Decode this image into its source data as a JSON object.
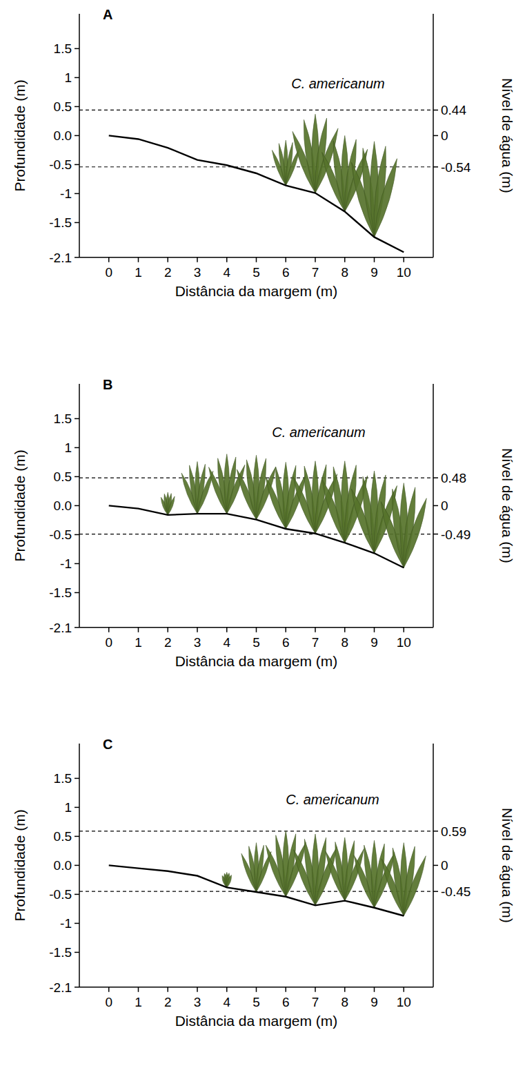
{
  "chart_data": [
    {
      "type": "line",
      "title": "A",
      "annotation": "C. americanum",
      "x_label": "Distância da margem (m)",
      "y_label": "Profundidade (m)",
      "y2_label": "Nível de água (m)",
      "x": [
        0,
        1,
        2,
        3,
        4,
        5,
        6,
        7,
        8,
        9,
        10
      ],
      "values": [
        0,
        -0.06,
        -0.21,
        -0.42,
        -0.51,
        -0.65,
        -0.86,
        -0.99,
        -1.31,
        -1.75,
        -2.01
      ],
      "color": "#000000",
      "xlim": [
        -1,
        11
      ],
      "xticks": [
        0,
        1,
        2,
        3,
        4,
        5,
        6,
        7,
        8,
        9,
        10
      ],
      "ylim": [
        -2.1,
        2.1
      ],
      "yticks": [
        1.5,
        1,
        0.5,
        {
          "value": 0,
          "label": "0.0"
        },
        -0.5,
        -1,
        -1.5,
        -2.1
      ],
      "y2lim": [
        -2.1,
        2.1
      ],
      "y2ticks": [
        0.44,
        0,
        -0.54
      ],
      "water_levels": [
        0.44,
        -0.54
      ],
      "plants": {
        "x": [
          6,
          7,
          8,
          9
        ],
        "top": [
          -0.08,
          0.37,
          0.0,
          -0.1
        ],
        "color": "#56732c"
      }
    },
    {
      "type": "line",
      "title": "B",
      "annotation": "C. americanum",
      "x_label": "Distância da margem (m)",
      "y_label": "Profundidade (m)",
      "y2_label": "Nível de água (m)",
      "x": [
        0,
        1,
        2,
        3,
        4,
        5,
        6,
        7,
        8,
        9,
        10
      ],
      "values": [
        0,
        -0.05,
        -0.16,
        -0.14,
        -0.14,
        -0.24,
        -0.4,
        -0.48,
        -0.64,
        -0.82,
        -1.07
      ],
      "color": "#000000",
      "xlim": [
        -1,
        11
      ],
      "xticks": [
        0,
        1,
        2,
        3,
        4,
        5,
        6,
        7,
        8,
        9,
        10
      ],
      "ylim": [
        -2.1,
        2.1
      ],
      "yticks": [
        1.5,
        1,
        0.5,
        {
          "value": 0,
          "label": "0.0"
        },
        -0.5,
        -1,
        -1.5,
        -2.1
      ],
      "y2lim": [
        -2.1,
        2.1
      ],
      "y2ticks": [
        0.48,
        0,
        -0.49
      ],
      "water_levels": [
        0.48,
        -0.49
      ],
      "plants": {
        "x": [
          2,
          3,
          4,
          5,
          6,
          7,
          8,
          9,
          10
        ],
        "top": [
          0.23,
          0.76,
          0.89,
          0.87,
          0.75,
          0.77,
          0.77,
          0.6,
          0.39
        ],
        "color": "#56732c"
      }
    },
    {
      "type": "line",
      "title": "C",
      "annotation": "C. americanum",
      "x_label": "Distância da margem (m)",
      "y_label": "Profundidade (m)",
      "y2_label": "Nível de água (m)",
      "x": [
        0,
        1,
        2,
        3,
        4,
        5,
        6,
        7,
        8,
        9,
        10
      ],
      "values": [
        0,
        -0.05,
        -0.1,
        -0.18,
        -0.38,
        -0.46,
        -0.54,
        -0.69,
        -0.61,
        -0.73,
        -0.87
      ],
      "color": "#000000",
      "xlim": [
        -1,
        11
      ],
      "xticks": [
        0,
        1,
        2,
        3,
        4,
        5,
        6,
        7,
        8,
        9,
        10
      ],
      "ylim": [
        -2.1,
        2.1
      ],
      "yticks": [
        1.5,
        1,
        0.5,
        {
          "value": 0,
          "label": "0.0"
        },
        -0.5,
        -1,
        -1.5,
        -2.1
      ],
      "y2lim": [
        -2.1,
        2.1
      ],
      "y2ticks": [
        0.59,
        0,
        -0.45
      ],
      "water_levels": [
        0.59,
        -0.45
      ],
      "plants": {
        "x": [
          4,
          5,
          6,
          7,
          8,
          9,
          10
        ],
        "top": [
          -0.12,
          0.39,
          0.6,
          0.54,
          0.48,
          0.43,
          0.39
        ],
        "color": "#56732c"
      }
    }
  ]
}
